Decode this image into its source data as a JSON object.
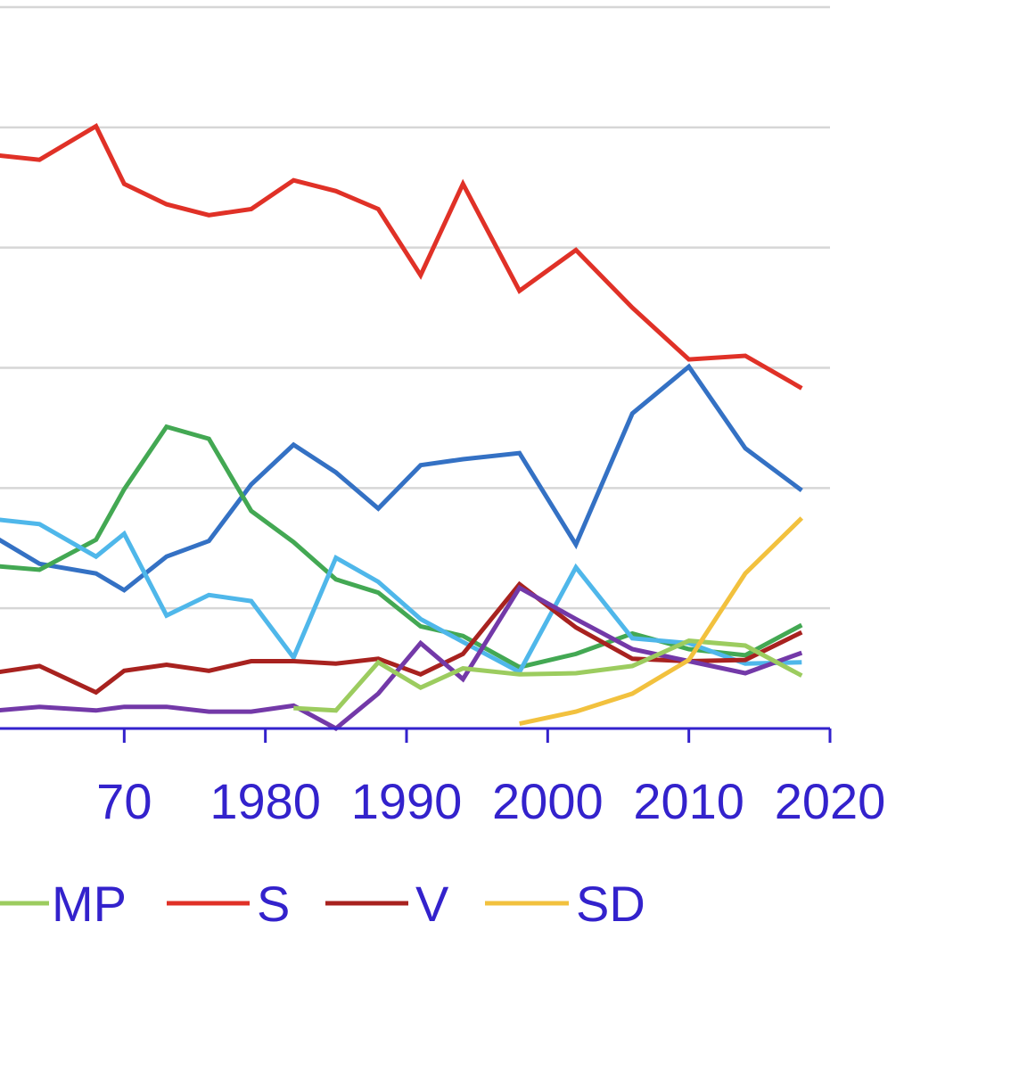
{
  "chart_data": {
    "type": "line",
    "title": "",
    "xlabel": "",
    "ylabel": "",
    "xlim": [
      1961.2,
      2020
    ],
    "ylim": [
      0,
      60
    ],
    "grid": true,
    "legend_position": "bottom",
    "x_ticks": [
      "70",
      "1980",
      "1990",
      "2000",
      "2010",
      "2020"
    ],
    "x_tick_values": [
      1970,
      1980,
      1990,
      2000,
      2010,
      2020
    ],
    "axis_color": "#3322cc",
    "series": [
      {
        "name": "S",
        "color": "#e03127",
        "x": [
          1960,
          1964,
          1968,
          1970,
          1973,
          1976,
          1979,
          1982,
          1985,
          1988,
          1991,
          1994,
          1998,
          2002,
          2006,
          2010,
          2014,
          2018
        ],
        "y": [
          47.8,
          47.3,
          50.1,
          45.3,
          43.6,
          42.7,
          43.2,
          45.6,
          44.7,
          43.2,
          37.7,
          45.3,
          36.4,
          39.8,
          35.0,
          30.7,
          31.0,
          28.3
        ]
      },
      {
        "name": "",
        "color": "#3471c4",
        "x": [
          1960,
          1964,
          1968,
          1970,
          1973,
          1976,
          1979,
          1982,
          1985,
          1988,
          1991,
          1994,
          1998,
          2002,
          2006,
          2010,
          2014,
          2018
        ],
        "y": [
          16.5,
          13.7,
          12.9,
          11.5,
          14.3,
          15.6,
          20.3,
          23.6,
          21.3,
          18.3,
          21.9,
          22.4,
          22.9,
          15.3,
          26.2,
          30.1,
          23.3,
          19.8
        ]
      },
      {
        "name": "",
        "color": "#43a853",
        "x": [
          1960,
          1964,
          1968,
          1970,
          1973,
          1976,
          1979,
          1982,
          1985,
          1988,
          1991,
          1994,
          1998,
          2002,
          2006,
          2010,
          2014,
          2018
        ],
        "y": [
          13.6,
          13.2,
          15.7,
          19.9,
          25.1,
          24.1,
          18.1,
          15.5,
          12.4,
          11.3,
          8.5,
          7.7,
          5.1,
          6.2,
          7.9,
          6.6,
          6.1,
          8.6
        ]
      },
      {
        "name": "",
        "color": "#4fb7ea",
        "x": [
          1960,
          1964,
          1968,
          1970,
          1973,
          1976,
          1979,
          1982,
          1985,
          1988,
          1991,
          1994,
          1998,
          2002,
          2006,
          2010,
          2014,
          2018
        ],
        "y": [
          17.5,
          17.0,
          14.3,
          16.2,
          9.4,
          11.1,
          10.6,
          5.9,
          14.2,
          12.2,
          9.1,
          7.2,
          4.7,
          13.4,
          7.5,
          7.1,
          5.4,
          5.5
        ]
      },
      {
        "name": "V",
        "color": "#a8221f",
        "x": [
          1960,
          1964,
          1968,
          1970,
          1973,
          1976,
          1979,
          1982,
          1985,
          1988,
          1991,
          1994,
          1998,
          2002,
          2006,
          2010,
          2014,
          2018
        ],
        "y": [
          4.5,
          5.2,
          3.0,
          4.8,
          5.3,
          4.8,
          5.6,
          5.6,
          5.4,
          5.8,
          4.5,
          6.2,
          12.0,
          8.4,
          5.8,
          5.6,
          5.7,
          8.0
        ]
      },
      {
        "name": "",
        "color": "#7339a8",
        "x": [
          1960,
          1964,
          1968,
          1970,
          1973,
          1976,
          1979,
          1982,
          1985,
          1988,
          1991,
          1994,
          1998,
          2002,
          2006,
          2010,
          2014,
          2018
        ],
        "y": [
          1.4,
          1.8,
          1.5,
          1.8,
          1.8,
          1.4,
          1.4,
          1.9,
          0.0,
          2.9,
          7.1,
          4.1,
          11.7,
          9.1,
          6.6,
          5.6,
          4.6,
          6.3
        ]
      },
      {
        "name": "MP",
        "color": "#9ccc5f",
        "x": [
          1982,
          1985,
          1988,
          1991,
          1994,
          1998,
          2002,
          2006,
          2010,
          2014,
          2018
        ],
        "y": [
          1.7,
          1.5,
          5.5,
          3.4,
          5.0,
          4.5,
          4.6,
          5.2,
          7.3,
          6.9,
          4.4
        ]
      },
      {
        "name": "SD",
        "color": "#f2c13e",
        "x": [
          1998,
          2002,
          2006,
          2010,
          2014,
          2018
        ],
        "y": [
          0.4,
          1.4,
          2.9,
          5.7,
          12.9,
          17.5
        ]
      }
    ]
  },
  "legend": {
    "items": [
      {
        "label": "MP",
        "color": "#9ccc5f"
      },
      {
        "label": "S",
        "color": "#e03127"
      },
      {
        "label": "V",
        "color": "#a8221f"
      },
      {
        "label": "SD",
        "color": "#f2c13e"
      }
    ]
  }
}
